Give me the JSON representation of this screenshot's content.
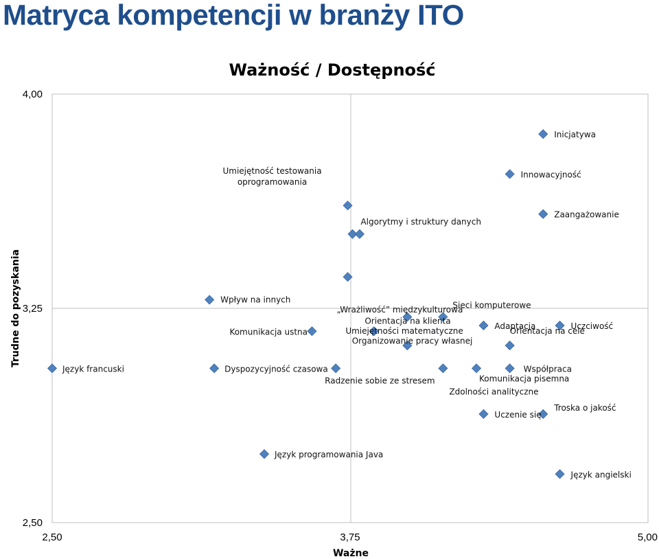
{
  "slide_title": "Matryca kompetencji w branży ITO",
  "chart_data": {
    "type": "scatter",
    "title": "Ważność / Dostępność",
    "xlabel": "Ważne",
    "ylabel": "Trudne do pozyskania",
    "xlim": [
      2.5,
      5.0
    ],
    "ylim": [
      2.5,
      4.0
    ],
    "x_ticks": [
      "2,50",
      "3,75",
      "5,00"
    ],
    "y_ticks": [
      "2,50",
      "3,25",
      "4,00"
    ],
    "grid": false,
    "marker_color": "#4F81BD",
    "points": [
      {
        "label": "Inicjatywa",
        "x": 4.56,
        "y": 3.86
      },
      {
        "label": "Innowacyjność",
        "x": 4.42,
        "y": 3.72
      },
      {
        "label": "Zaangażowanie",
        "x": 4.56,
        "y": 3.58
      },
      {
        "label": "Umiejętność testowania\noprogramowania",
        "x": 3.74,
        "y": 3.61
      },
      {
        "label": "Algorytmy i struktury danych",
        "x": 3.76,
        "y": 3.51
      },
      {
        "label": "",
        "x": 3.79,
        "y": 3.51
      },
      {
        "label": "„Wrażliwość” międzykulturowa",
        "x": 3.74,
        "y": 3.36
      },
      {
        "label": "Wpływ na innych",
        "x": 3.16,
        "y": 3.28
      },
      {
        "label": "Sieci komputerowe",
        "x": 4.14,
        "y": 3.22
      },
      {
        "label": "Orientacja na klienta",
        "x": 3.99,
        "y": 3.22
      },
      {
        "label": "Adaptacja",
        "x": 4.31,
        "y": 3.19
      },
      {
        "label": "Uczciwość",
        "x": 4.63,
        "y": 3.19
      },
      {
        "label": "Komunikacja ustna",
        "x": 3.59,
        "y": 3.17
      },
      {
        "label": "Organizowanie pracy własnej",
        "x": 3.85,
        "y": 3.17
      },
      {
        "label": "Umiejętności matematyczne",
        "x": 3.99,
        "y": 3.12
      },
      {
        "label": "Orientacja na cele",
        "x": 4.42,
        "y": 3.12
      },
      {
        "label": "Język francuski",
        "x": 2.5,
        "y": 3.04
      },
      {
        "label": "Dyspozycyjność czasowa",
        "x": 3.18,
        "y": 3.04
      },
      {
        "label": "Radzenie sobie ze stresem",
        "x": 3.69,
        "y": 3.04
      },
      {
        "label": "Komunikacja pisemna",
        "x": 4.28,
        "y": 3.04
      },
      {
        "label": "Współpraca",
        "x": 4.42,
        "y": 3.04
      },
      {
        "label": "Zdolności analityczne",
        "x": 4.14,
        "y": 3.04
      },
      {
        "label": "Uczenie się",
        "x": 4.31,
        "y": 2.88
      },
      {
        "label": "Troska o jakość",
        "x": 4.56,
        "y": 2.88
      },
      {
        "label": "Język programowania Java",
        "x": 3.39,
        "y": 2.74
      },
      {
        "label": "Język angielski",
        "x": 4.63,
        "y": 2.67
      }
    ]
  }
}
